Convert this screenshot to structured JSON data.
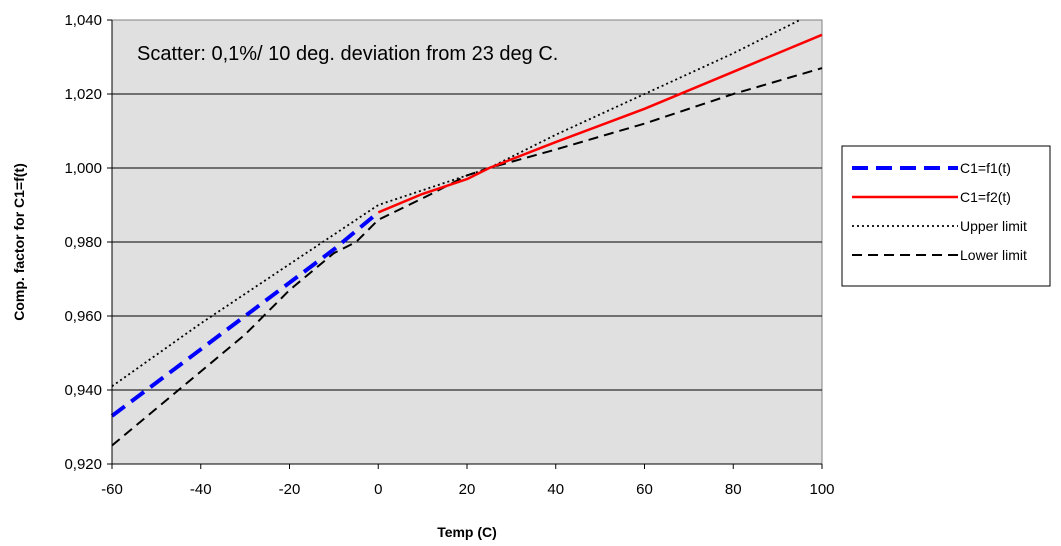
{
  "chart_data": {
    "type": "line",
    "title": "",
    "xlabel": "Temp (C)",
    "ylabel": "Comp. factor for C1=f(t)",
    "annotation": "Scatter: 0,1%/ 10 deg. deviation from 23 deg C.",
    "xlim": [
      -60,
      100
    ],
    "ylim": [
      0.92,
      1.04
    ],
    "x_ticks": [
      "-60",
      "-40",
      "-20",
      "0",
      "20",
      "40",
      "60",
      "80",
      "100"
    ],
    "y_ticks": [
      "0,920",
      "0,940",
      "0,960",
      "0,980",
      "1,000",
      "1,020",
      "1,040"
    ],
    "grid": "horizontal",
    "plot_background": "#e0e0e0",
    "legend_position": "right",
    "series": [
      {
        "name": "C1=f1(t)",
        "color": "#0000ff",
        "dash": "long-dash",
        "x": [
          -60,
          -50,
          -40,
          -30,
          -20,
          -10,
          -5,
          0
        ],
        "y": [
          0.933,
          0.942,
          0.951,
          0.96,
          0.969,
          0.978,
          0.983,
          0.988
        ]
      },
      {
        "name": "C1=f2(t)",
        "color": "#ff0000",
        "dash": "solid",
        "x": [
          0,
          10,
          20,
          25,
          40,
          60,
          80,
          100
        ],
        "y": [
          0.988,
          0.993,
          0.997,
          1.0,
          1.007,
          1.016,
          1.026,
          1.036
        ]
      },
      {
        "name": "Upper limit",
        "color": "#000000",
        "dash": "dotted",
        "x": [
          -60,
          -40,
          -20,
          -10,
          0,
          10,
          20,
          25,
          40,
          60,
          80,
          95
        ],
        "y": [
          0.941,
          0.958,
          0.974,
          0.982,
          0.99,
          0.994,
          0.998,
          1.0,
          1.009,
          1.02,
          1.031,
          1.04
        ]
      },
      {
        "name": "Lower limit",
        "color": "#000000",
        "dash": "dashed",
        "x": [
          -60,
          -50,
          -40,
          -30,
          -20,
          -10,
          -5,
          0,
          12,
          20,
          25,
          40,
          60,
          80,
          100
        ],
        "y": [
          0.925,
          0.935,
          0.945,
          0.955,
          0.967,
          0.977,
          0.98,
          0.986,
          0.993,
          0.998,
          1.0,
          1.005,
          1.012,
          1.02,
          1.027
        ]
      }
    ]
  }
}
